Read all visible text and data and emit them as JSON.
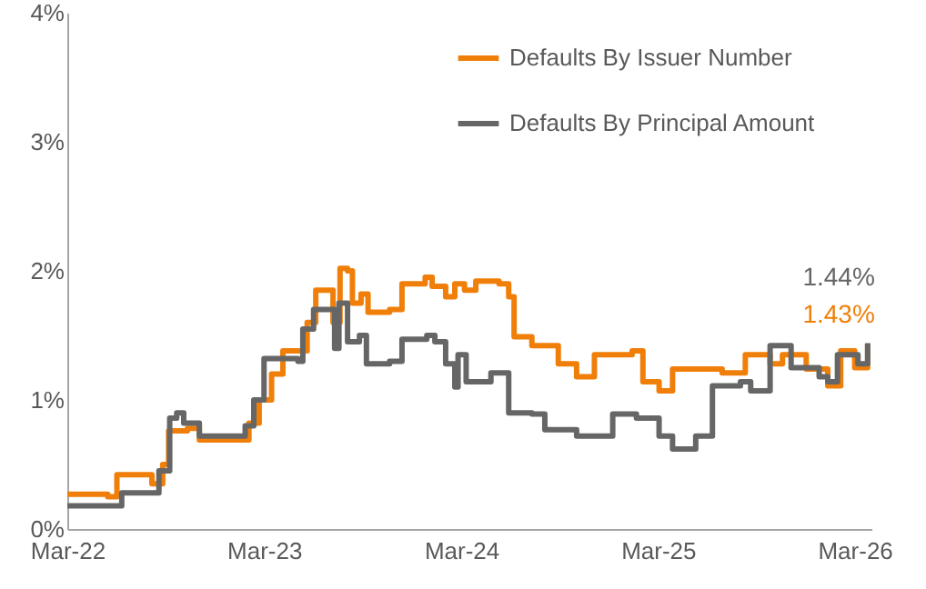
{
  "chart_data": {
    "type": "step",
    "xlim": [
      "2022-03-01",
      "2026-04-01"
    ],
    "xticks": [
      {
        "value": "2022-03-01",
        "label": "Mar-22"
      },
      {
        "value": "2023-03-01",
        "label": "Mar-23"
      },
      {
        "value": "2024-03-01",
        "label": "Mar-24"
      },
      {
        "value": "2025-03-01",
        "label": "Mar-25"
      },
      {
        "value": "2026-03-01",
        "label": "Mar-26"
      }
    ],
    "ylim": [
      0,
      4
    ],
    "yticks": [
      {
        "value": 0,
        "label": "0%"
      },
      {
        "value": 1,
        "label": "1%"
      },
      {
        "value": 2,
        "label": "2%"
      },
      {
        "value": 3,
        "label": "3%"
      },
      {
        "value": 4,
        "label": "4%"
      }
    ],
    "grid": false,
    "legend": "top right",
    "series": [
      {
        "name": "Defaults By Issuer Number",
        "color": "#f07f09",
        "x": [
          "2022-03-01",
          "2022-05-15",
          "2022-06-01",
          "2022-07-20",
          "2022-08-05",
          "2022-08-25",
          "2022-09-05",
          "2022-10-10",
          "2022-11-01",
          "2023-01-20",
          "2023-02-01",
          "2023-02-20",
          "2023-03-15",
          "2023-04-05",
          "2023-05-05",
          "2023-05-20",
          "2023-06-05",
          "2023-07-01",
          "2023-07-07",
          "2023-07-20",
          "2023-08-03",
          "2023-08-12",
          "2023-08-28",
          "2023-09-10",
          "2023-10-20",
          "2023-11-12",
          "2023-12-25",
          "2024-01-07",
          "2024-02-01",
          "2024-02-18",
          "2024-03-07",
          "2024-03-28",
          "2024-05-10",
          "2024-05-28",
          "2024-06-07",
          "2024-07-10",
          "2024-08-28",
          "2024-10-01",
          "2024-11-03",
          "2025-01-12",
          "2025-02-01",
          "2025-03-03",
          "2025-03-28",
          "2025-05-10",
          "2025-06-28",
          "2025-08-10",
          "2025-09-25",
          "2025-10-18",
          "2025-12-01",
          "2026-01-10",
          "2026-02-03",
          "2026-03-01",
          "2026-03-25"
        ],
        "values": [
          0.27,
          0.25,
          0.42,
          0.42,
          0.35,
          0.5,
          0.76,
          0.78,
          0.69,
          0.69,
          0.82,
          1.0,
          1.2,
          1.38,
          1.38,
          1.6,
          1.85,
          1.85,
          1.6,
          2.02,
          2.0,
          1.75,
          1.82,
          1.68,
          1.7,
          1.9,
          1.95,
          1.88,
          1.8,
          1.9,
          1.85,
          1.92,
          1.9,
          1.8,
          1.49,
          1.42,
          1.28,
          1.18,
          1.35,
          1.38,
          1.14,
          1.07,
          1.24,
          1.24,
          1.21,
          1.35,
          1.28,
          1.35,
          1.24,
          1.11,
          1.38,
          1.25,
          1.43
        ]
      },
      {
        "name": "Defaults By Principal Amount",
        "color": "#666666",
        "x": [
          "2022-03-01",
          "2022-06-01",
          "2022-06-10",
          "2022-08-01",
          "2022-08-18",
          "2022-09-07",
          "2022-09-20",
          "2022-10-03",
          "2022-11-01",
          "2023-01-07",
          "2023-01-25",
          "2023-02-10",
          "2023-03-01",
          "2023-05-03",
          "2023-05-12",
          "2023-06-01",
          "2023-07-01",
          "2023-07-10",
          "2023-07-18",
          "2023-08-03",
          "2023-08-25",
          "2023-09-07",
          "2023-10-20",
          "2023-11-12",
          "2023-12-28",
          "2024-01-12",
          "2024-02-01",
          "2024-02-18",
          "2024-02-24",
          "2024-03-10",
          "2024-04-25",
          "2024-05-28",
          "2024-07-10",
          "2024-08-03",
          "2024-10-01",
          "2024-11-03",
          "2024-12-07",
          "2025-01-20",
          "2025-03-03",
          "2025-03-28",
          "2025-05-10",
          "2025-06-03",
          "2025-06-10",
          "2025-08-01",
          "2025-08-20",
          "2025-09-03",
          "2025-09-25",
          "2025-10-25",
          "2025-11-03",
          "2025-12-25",
          "2026-01-10",
          "2026-01-28",
          "2026-02-25",
          "2026-03-07",
          "2026-03-25"
        ],
        "values": [
          0.18,
          0.18,
          0.28,
          0.28,
          0.45,
          0.86,
          0.9,
          0.82,
          0.72,
          0.72,
          0.8,
          1.0,
          1.32,
          1.3,
          1.55,
          1.7,
          1.7,
          1.4,
          1.75,
          1.45,
          1.5,
          1.28,
          1.3,
          1.47,
          1.5,
          1.45,
          1.28,
          1.1,
          1.35,
          1.14,
          1.21,
          0.9,
          0.89,
          0.77,
          0.72,
          0.72,
          0.89,
          0.86,
          0.72,
          0.62,
          0.72,
          0.72,
          1.11,
          1.14,
          1.07,
          1.07,
          1.42,
          1.42,
          1.25,
          1.18,
          1.14,
          1.35,
          1.35,
          1.28,
          1.44
        ]
      }
    ],
    "annotations": [
      {
        "text": "1.43%",
        "x": "2026-03-25",
        "y": 1.43
      },
      {
        "text": "1.44%",
        "x": "2026-03-25",
        "y": 1.44
      }
    ]
  }
}
